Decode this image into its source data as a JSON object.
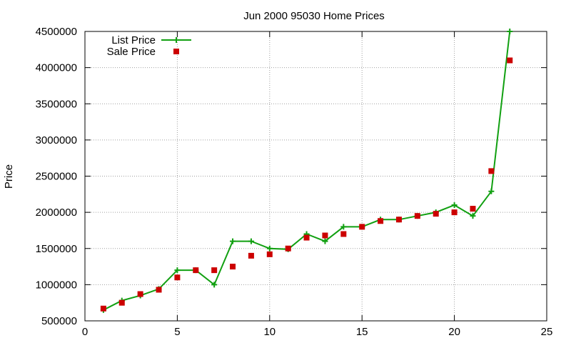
{
  "chart_data": {
    "type": "line",
    "title": "Jun 2000 95030 Home Prices",
    "xlabel": "",
    "ylabel": "Price",
    "xlim": [
      0,
      25
    ],
    "ylim": [
      500000,
      4500000
    ],
    "x_ticks": [
      0,
      5,
      10,
      15,
      20,
      25
    ],
    "y_ticks": [
      500000,
      1000000,
      1500000,
      2000000,
      2500000,
      3000000,
      3500000,
      4000000,
      4500000
    ],
    "grid": true,
    "legend_position": "top-left",
    "series": [
      {
        "name": "List Price",
        "style": "line-plus",
        "color": "#11a011",
        "x": [
          1,
          2,
          3,
          4,
          5,
          6,
          7,
          8,
          9,
          10,
          11,
          12,
          13,
          14,
          15,
          16,
          17,
          18,
          19,
          20,
          21,
          22,
          23
        ],
        "values": [
          650000,
          780000,
          850000,
          940000,
          1200000,
          1200000,
          1000000,
          1600000,
          1600000,
          1500000,
          1490000,
          1700000,
          1600000,
          1800000,
          1800000,
          1900000,
          1900000,
          1950000,
          2000000,
          2100000,
          1950000,
          2290000,
          4500000
        ]
      },
      {
        "name": "Sale Price",
        "style": "square",
        "color": "#cc0000",
        "x": [
          1,
          2,
          3,
          4,
          5,
          6,
          7,
          8,
          9,
          10,
          11,
          12,
          13,
          14,
          15,
          16,
          17,
          18,
          19,
          20,
          21,
          22,
          23
        ],
        "values": [
          670000,
          750000,
          870000,
          930000,
          1100000,
          1200000,
          1200000,
          1250000,
          1400000,
          1420000,
          1500000,
          1650000,
          1680000,
          1700000,
          1800000,
          1880000,
          1900000,
          1950000,
          1980000,
          2000000,
          2050000,
          2570000,
          4100000
        ]
      }
    ]
  }
}
